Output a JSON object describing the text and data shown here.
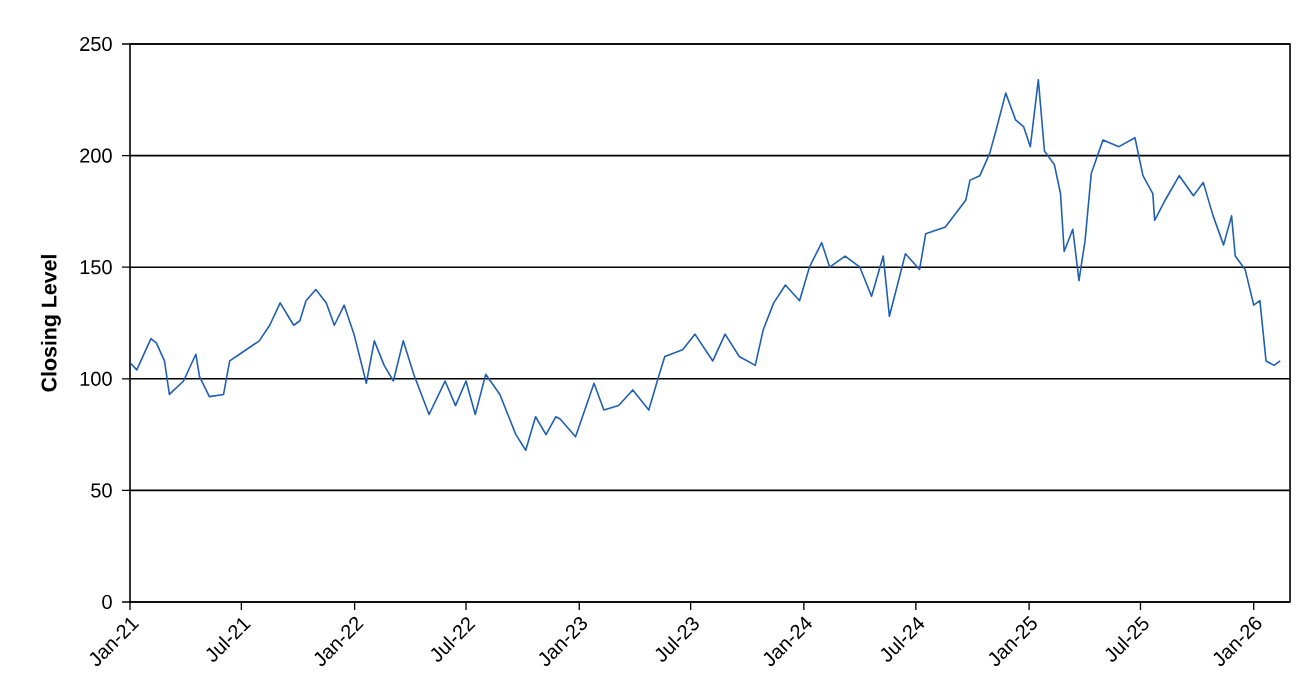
{
  "chart_data": {
    "type": "line",
    "ylabel": "Closing Level",
    "xlim": [
      "2021-01-01",
      "2026-03-01"
    ],
    "ylim": [
      0,
      250
    ],
    "xticks": [
      {
        "value": "2021-01-01",
        "label": "Jan-21"
      },
      {
        "value": "2021-07-01",
        "label": "Jul-21"
      },
      {
        "value": "2022-01-01",
        "label": "Jan-22"
      },
      {
        "value": "2022-07-01",
        "label": "Jul-22"
      },
      {
        "value": "2023-01-01",
        "label": "Jan-23"
      },
      {
        "value": "2023-07-01",
        "label": "Jul-23"
      },
      {
        "value": "2024-01-01",
        "label": "Jan-24"
      },
      {
        "value": "2024-07-01",
        "label": "Jul-24"
      },
      {
        "value": "2025-01-01",
        "label": "Jan-25"
      },
      {
        "value": "2025-07-01",
        "label": "Jul-25"
      },
      {
        "value": "2026-01-01",
        "label": "Jan-26"
      }
    ],
    "yticks": [
      0,
      50,
      100,
      150,
      200,
      250
    ],
    "grid": "y",
    "marker": "none",
    "line_style": "solid",
    "x": [
      "2021-01-02",
      "2021-01-12",
      "2021-02-04",
      "2021-02-13",
      "2021-02-26",
      "2021-03-06",
      "2021-03-29",
      "2021-04-18",
      "2021-04-24",
      "2021-05-10",
      "2021-06-02",
      "2021-06-12",
      "2021-06-28",
      "2021-07-30",
      "2021-08-16",
      "2021-09-02",
      "2021-09-24",
      "2021-10-04",
      "2021-10-14",
      "2021-10-30",
      "2021-11-16",
      "2021-11-29",
      "2021-12-15",
      "2021-12-31",
      "2022-01-20",
      "2022-02-02",
      "2022-02-18",
      "2022-03-05",
      "2022-03-21",
      "2022-04-07",
      "2022-05-02",
      "2022-05-28",
      "2022-06-14",
      "2022-07-01",
      "2022-07-16",
      "2022-08-02",
      "2022-08-25",
      "2022-09-20",
      "2022-10-06",
      "2022-10-22",
      "2022-11-08",
      "2022-11-24",
      "2022-12-01",
      "2022-12-26",
      "2023-01-25",
      "2023-02-10",
      "2023-03-06",
      "2023-03-29",
      "2023-04-24",
      "2023-05-10",
      "2023-05-20",
      "2023-06-18",
      "2023-07-08",
      "2023-08-06",
      "2023-08-26",
      "2023-09-18",
      "2023-10-14",
      "2023-10-27",
      "2023-11-13",
      "2023-12-02",
      "2023-12-25",
      "2024-01-10",
      "2024-01-30",
      "2024-02-12",
      "2024-03-08",
      "2024-04-01",
      "2024-04-20",
      "2024-05-09",
      "2024-05-19",
      "2024-06-14",
      "2024-07-07",
      "2024-07-17",
      "2024-08-18",
      "2024-09-20",
      "2024-09-27",
      "2024-10-13",
      "2024-10-29",
      "2024-11-08",
      "2024-11-24",
      "2024-12-10",
      "2024-12-23",
      "2025-01-03",
      "2025-01-16",
      "2025-01-26",
      "2025-02-11",
      "2025-02-21",
      "2025-02-27",
      "2025-03-13",
      "2025-03-23",
      "2025-04-02",
      "2025-04-12",
      "2025-05-01",
      "2025-05-27",
      "2025-06-22",
      "2025-07-05",
      "2025-07-21",
      "2025-07-24",
      "2025-08-10",
      "2025-09-02",
      "2025-09-25",
      "2025-10-11",
      "2025-10-27",
      "2025-11-13",
      "2025-11-26",
      "2025-12-02",
      "2025-12-18",
      "2026-01-01",
      "2026-01-11",
      "2026-01-21",
      "2026-02-03",
      "2026-02-13"
    ],
    "series": [
      {
        "color": "#1f5fb4",
        "values": [
          107,
          104,
          118,
          116,
          108,
          93,
          99,
          111,
          101,
          92,
          93,
          108,
          111,
          117,
          124,
          134,
          124,
          126,
          135,
          140,
          134,
          124,
          133,
          120,
          98,
          117,
          106,
          99,
          117,
          102,
          84,
          99,
          88,
          99,
          84,
          102,
          93,
          75,
          68,
          83,
          75,
          83,
          82,
          74,
          98,
          86,
          88,
          95,
          86,
          101,
          110,
          113,
          120,
          108,
          120,
          110,
          106,
          122,
          134,
          142,
          135,
          150,
          161,
          150,
          155,
          150,
          137,
          155,
          128,
          156,
          149,
          165,
          168,
          180,
          189,
          191,
          201,
          211,
          228,
          216,
          213,
          204,
          234,
          202,
          196,
          183,
          157,
          167,
          144,
          162,
          192,
          207,
          204,
          208,
          191,
          183,
          171,
          180,
          191,
          182,
          188,
          173,
          160,
          173,
          155,
          149,
          133,
          135,
          108,
          106,
          108
        ]
      }
    ]
  }
}
